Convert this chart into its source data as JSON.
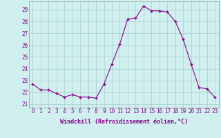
{
  "x": [
    0,
    1,
    2,
    3,
    4,
    5,
    6,
    7,
    8,
    9,
    10,
    11,
    12,
    13,
    14,
    15,
    16,
    17,
    18,
    19,
    20,
    21,
    22,
    23
  ],
  "y": [
    22.7,
    22.2,
    22.2,
    21.9,
    21.6,
    21.8,
    21.6,
    21.6,
    21.5,
    22.7,
    24.4,
    26.1,
    28.2,
    28.3,
    29.3,
    28.9,
    28.9,
    28.8,
    28.0,
    26.5,
    24.4,
    22.4,
    22.3,
    21.6
  ],
  "line_color": "#880088",
  "marker": "+",
  "bg_color": "#d0f0f0",
  "grid_color": "#aacccc",
  "xlabel": "Windchill (Refroidissement éolien,°C)",
  "xlabel_color": "#880088",
  "ylabel_ticks": [
    21,
    22,
    23,
    24,
    25,
    26,
    27,
    28,
    29
  ],
  "xtick_labels": [
    "0",
    "1",
    "2",
    "3",
    "4",
    "5",
    "6",
    "7",
    "8",
    "9",
    "10",
    "11",
    "12",
    "13",
    "14",
    "15",
    "16",
    "17",
    "18",
    "19",
    "20",
    "21",
    "22",
    "23"
  ],
  "xlim": [
    -0.5,
    23.5
  ],
  "ylim": [
    20.7,
    29.7
  ],
  "tick_label_color": "#880088",
  "tick_fontsize": 5.5,
  "xlabel_fontsize": 6.0
}
